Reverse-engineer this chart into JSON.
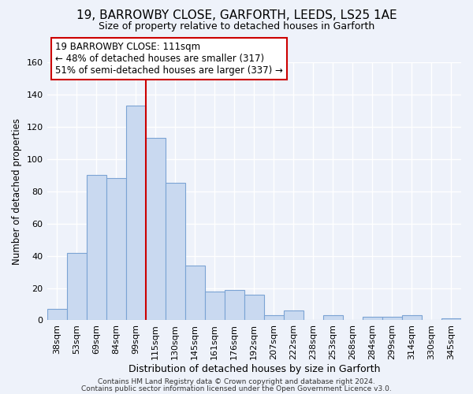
{
  "title": "19, BARROWBY CLOSE, GARFORTH, LEEDS, LS25 1AE",
  "subtitle": "Size of property relative to detached houses in Garforth",
  "xlabel": "Distribution of detached houses by size in Garforth",
  "ylabel": "Number of detached properties",
  "bin_labels": [
    "38sqm",
    "53sqm",
    "69sqm",
    "84sqm",
    "99sqm",
    "115sqm",
    "130sqm",
    "145sqm",
    "161sqm",
    "176sqm",
    "192sqm",
    "207sqm",
    "222sqm",
    "238sqm",
    "253sqm",
    "268sqm",
    "284sqm",
    "299sqm",
    "314sqm",
    "330sqm",
    "345sqm"
  ],
  "bar_values": [
    7,
    42,
    90,
    88,
    133,
    113,
    85,
    34,
    18,
    19,
    16,
    3,
    6,
    0,
    3,
    0,
    2,
    2,
    3,
    0,
    1
  ],
  "bar_color": "#c9d9f0",
  "bar_edge_color": "#7ba3d4",
  "vline_color": "#cc0000",
  "ylim": [
    0,
    160
  ],
  "yticks": [
    0,
    20,
    40,
    60,
    80,
    100,
    120,
    140,
    160
  ],
  "annotation_line1": "19 BARROWBY CLOSE: 111sqm",
  "annotation_line2": "← 48% of detached houses are smaller (317)",
  "annotation_line3": "51% of semi-detached houses are larger (337) →",
  "annotation_box_color": "#ffffff",
  "annotation_box_edge": "#cc0000",
  "footer1": "Contains HM Land Registry data © Crown copyright and database right 2024.",
  "footer2": "Contains public sector information licensed under the Open Government Licence v3.0.",
  "background_color": "#eef2fa",
  "grid_color": "#ffffff",
  "title_fontsize": 11,
  "subtitle_fontsize": 9,
  "ylabel_fontsize": 8.5,
  "xlabel_fontsize": 9,
  "tick_fontsize": 8,
  "annot_fontsize": 8.5,
  "footer_fontsize": 6.5
}
